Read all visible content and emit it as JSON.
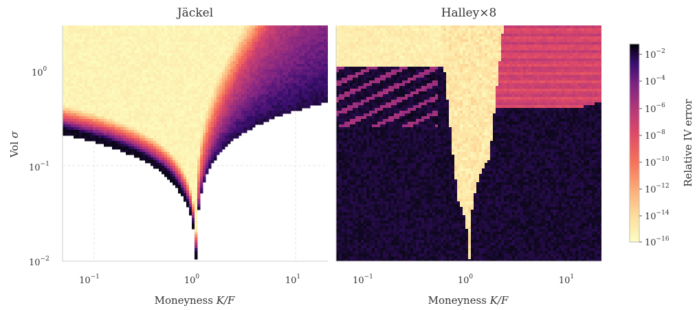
{
  "chart_data": [
    {
      "type": "heatmap",
      "title": "Jäckel",
      "xlabel_main": "Moneyness ",
      "xlabel_var": "K/F",
      "ylabel_main": "Vol ",
      "ylabel_var": "σ",
      "xscale": "log",
      "yscale": "log",
      "xlim": [
        0.05,
        20
      ],
      "ylim": [
        0.01,
        3
      ],
      "x_ticks": [
        {
          "base": "10",
          "exp": "−1"
        },
        {
          "base": "10",
          "exp": "0"
        },
        {
          "base": "10",
          "exp": "1"
        }
      ],
      "y_ticks": [
        {
          "base": "10",
          "exp": "−2"
        },
        {
          "base": "10",
          "exp": "−1"
        },
        {
          "base": "10",
          "exp": "0"
        }
      ],
      "grid": true,
      "undefined_region": "white (below vol ≈ 0.8 at K/F=0.05 narrowing to K/F≈1 at vol 0.01; at K/F=20 below vol ≈ 0.15)",
      "error_pattern": "error ~1e-16 to 1e-15 near the money and at high vol; grows to ~1e-2 (black) toward the deep in/out-of-money boundary, especially for K/F>1"
    },
    {
      "type": "heatmap",
      "title": "Halley×8",
      "xlabel_main": "Moneyness ",
      "xlabel_var": "K/F",
      "xscale": "log",
      "yscale": "log",
      "xlim": [
        0.05,
        20
      ],
      "ylim": [
        0.01,
        3
      ],
      "x_ticks": [
        {
          "base": "10",
          "exp": "−1"
        },
        {
          "base": "10",
          "exp": "0"
        },
        {
          "base": "10",
          "exp": "1"
        }
      ],
      "grid": true,
      "error_pattern": "accurate (~1e-16) only in a narrow wedge around K/F≈1 and high vol; most of the domain black (≥1e-2); a pink region ~1e-11 for K/F>1.5 at vol>0.4; striped magenta bands on the left"
    }
  ],
  "colorbar": {
    "label": "Relative IV error",
    "colormap": "magma_r",
    "scale": "log",
    "range": [
      1e-16,
      0.1
    ],
    "ticks": [
      {
        "base": "10",
        "exp": "−2"
      },
      {
        "base": "10",
        "exp": "−4"
      },
      {
        "base": "10",
        "exp": "−6"
      },
      {
        "base": "10",
        "exp": "−8"
      },
      {
        "base": "10",
        "exp": "−10"
      },
      {
        "base": "10",
        "exp": "−12"
      },
      {
        "base": "10",
        "exp": "−14"
      },
      {
        "base": "10",
        "exp": "−16"
      }
    ]
  },
  "colors": {
    "black": "#0b0718",
    "light": "#fcf4b8",
    "grid": "#e6e6e6",
    "spine": "#cccccc"
  }
}
